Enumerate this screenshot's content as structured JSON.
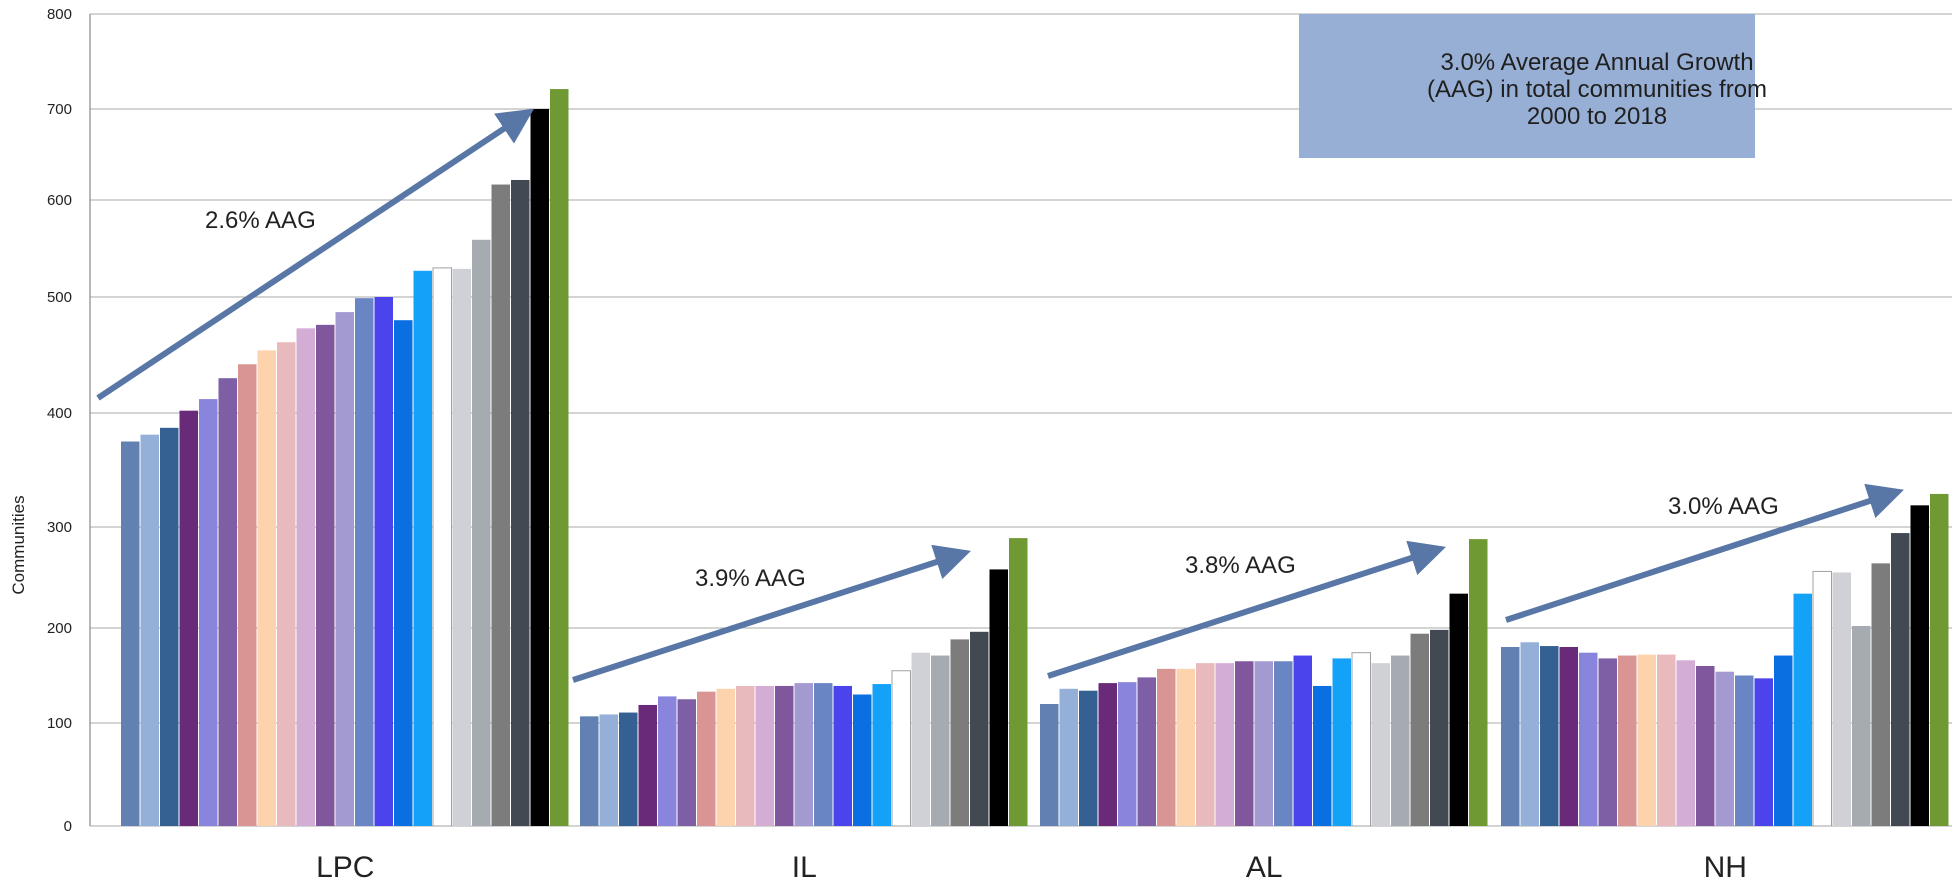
{
  "chart_data": {
    "type": "bar",
    "ylabel": "Communities",
    "xlabel": "",
    "ylim": [
      0,
      800
    ],
    "yticks": [
      0,
      100,
      200,
      300,
      400,
      500,
      600,
      700,
      800
    ],
    "grid": true,
    "categories": [
      "LPC",
      "IL",
      "AL",
      "NH"
    ],
    "series": [
      {
        "color": "#6280b2",
        "values": [
          375,
          107,
          120,
          180
        ]
      },
      {
        "color": "#95b0d8",
        "values": [
          381,
          109,
          136,
          185
        ]
      },
      {
        "color": "#356192",
        "values": [
          387,
          111,
          134,
          181
        ]
      },
      {
        "color": "#6a2a7a",
        "values": [
          402,
          119,
          142,
          180
        ]
      },
      {
        "color": "#8984dc",
        "values": [
          412,
          128,
          143,
          174
        ]
      },
      {
        "color": "#7e5ea4",
        "values": [
          430,
          125,
          148,
          168
        ]
      },
      {
        "color": "#d99494",
        "values": [
          442,
          133,
          157,
          171
        ]
      },
      {
        "color": "#fdd3ae",
        "values": [
          454,
          136,
          157,
          172
        ]
      },
      {
        "color": "#e8b9bd",
        "values": [
          461,
          139,
          163,
          172
        ]
      },
      {
        "color": "#d3add4",
        "values": [
          473,
          139,
          163,
          166
        ]
      },
      {
        "color": "#80569c",
        "values": [
          476,
          139,
          165,
          160
        ]
      },
      {
        "color": "#a49ad2",
        "values": [
          487,
          142,
          165,
          154
        ]
      },
      {
        "color": "#6a85c4",
        "values": [
          499,
          142,
          165,
          150
        ]
      },
      {
        "color": "#4b43ec",
        "values": [
          500,
          139,
          171,
          147
        ]
      },
      {
        "color": "#0a6fe0",
        "values": [
          480,
          130,
          139,
          171
        ]
      },
      {
        "color": "#14a2f8",
        "values": [
          527,
          141,
          168,
          234
        ]
      },
      {
        "color": "#ffffff",
        "values": [
          530,
          155,
          174,
          256
        ]
      },
      {
        "color": "#cfd1d6",
        "values": [
          529,
          174,
          163,
          255
        ]
      },
      {
        "color": "#a6abb1",
        "values": [
          559,
          171,
          171,
          202
        ]
      },
      {
        "color": "#7c7c7c",
        "values": [
          617,
          188,
          194,
          264
        ]
      },
      {
        "color": "#424952",
        "values": [
          622,
          196,
          198,
          294
        ]
      },
      {
        "color": "#000000",
        "values": [
          700,
          258,
          234,
          319
        ]
      },
      {
        "color": "#6f9a33",
        "values": [
          721,
          289,
          288,
          329
        ]
      }
    ],
    "annotations": [
      "2.6% AAG",
      "3.9% AAG",
      "3.8% AAG",
      "3.0% AAG"
    ],
    "textbox": "3.0% Average Annual Growth (AAG) in total communities from 2000 to 2018",
    "colors": {
      "arrow": "#5877a6",
      "textbox_bg": "#97afd4",
      "grid": "#a8a8a8"
    }
  }
}
